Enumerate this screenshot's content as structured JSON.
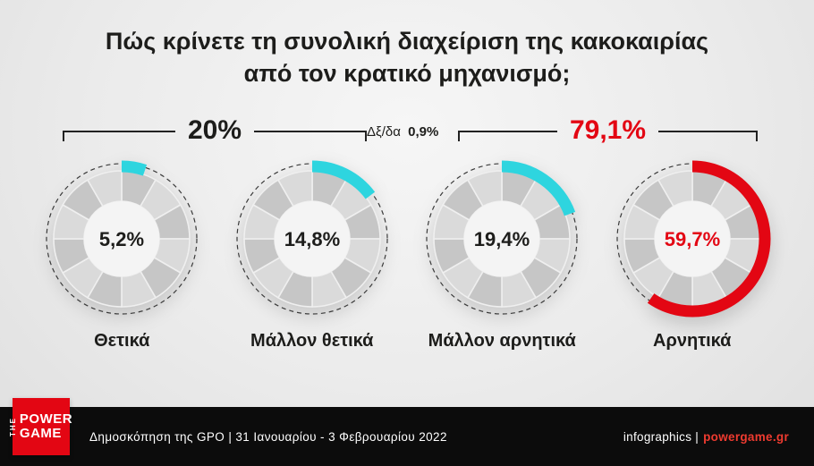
{
  "title": {
    "line1": "Πώς κρίνετε τη συνολική διαχείριση της κακοκαιρίας",
    "line2": "από τον κρατικό μηχανισμό;"
  },
  "annotations": {
    "group_positive": "20%",
    "dont_know_prefix": "Δξ/δα",
    "dont_know_value": "0,9%",
    "group_negative": "79,1%"
  },
  "chart_data": {
    "type": "pie",
    "title": "Πώς κρίνετε τη συνολική διαχείριση της κακοκαιρίας από τον κρατικό μηχανισμό;",
    "categories": [
      "Θετικά",
      "Μάλλον θετικά",
      "Μάλλον αρνητικά",
      "Αρνητικά"
    ],
    "values": [
      5.2,
      14.8,
      19.4,
      59.7
    ],
    "value_labels": [
      "5,2%",
      "14,8%",
      "19,4%",
      "59,7%"
    ],
    "arc_colors": [
      "#2ed5df",
      "#2ed5df",
      "#2ed5df",
      "#e30613"
    ],
    "value_label_colors": [
      "#1d1d1b",
      "#1d1d1b",
      "#1d1d1b",
      "#e30613"
    ],
    "groups": [
      {
        "label": "20%",
        "members": [
          "Θετικά",
          "Μάλλον θετικά"
        ],
        "color": "#1d1d1b"
      },
      {
        "label": "79,1%",
        "members": [
          "Μάλλον αρνητικά",
          "Αρνητικά"
        ],
        "color": "#e30613"
      }
    ],
    "other": {
      "label": "Δξ/δα",
      "value": 0.9,
      "value_label": "0,9%"
    }
  },
  "footer": {
    "source": "Δημοσκόπηση της GPO | 31 Ιανουαρίου - 3 Φεβρουαρίου 2022",
    "credit_plain": "infographics |",
    "credit_brand": "powergame.gr",
    "logo_the": "THE",
    "logo_power": "POWER",
    "logo_game": "GAME"
  },
  "colors": {
    "accent_cyan": "#2ed5df",
    "accent_red": "#e30613",
    "footer_bg": "#0c0c0c"
  }
}
